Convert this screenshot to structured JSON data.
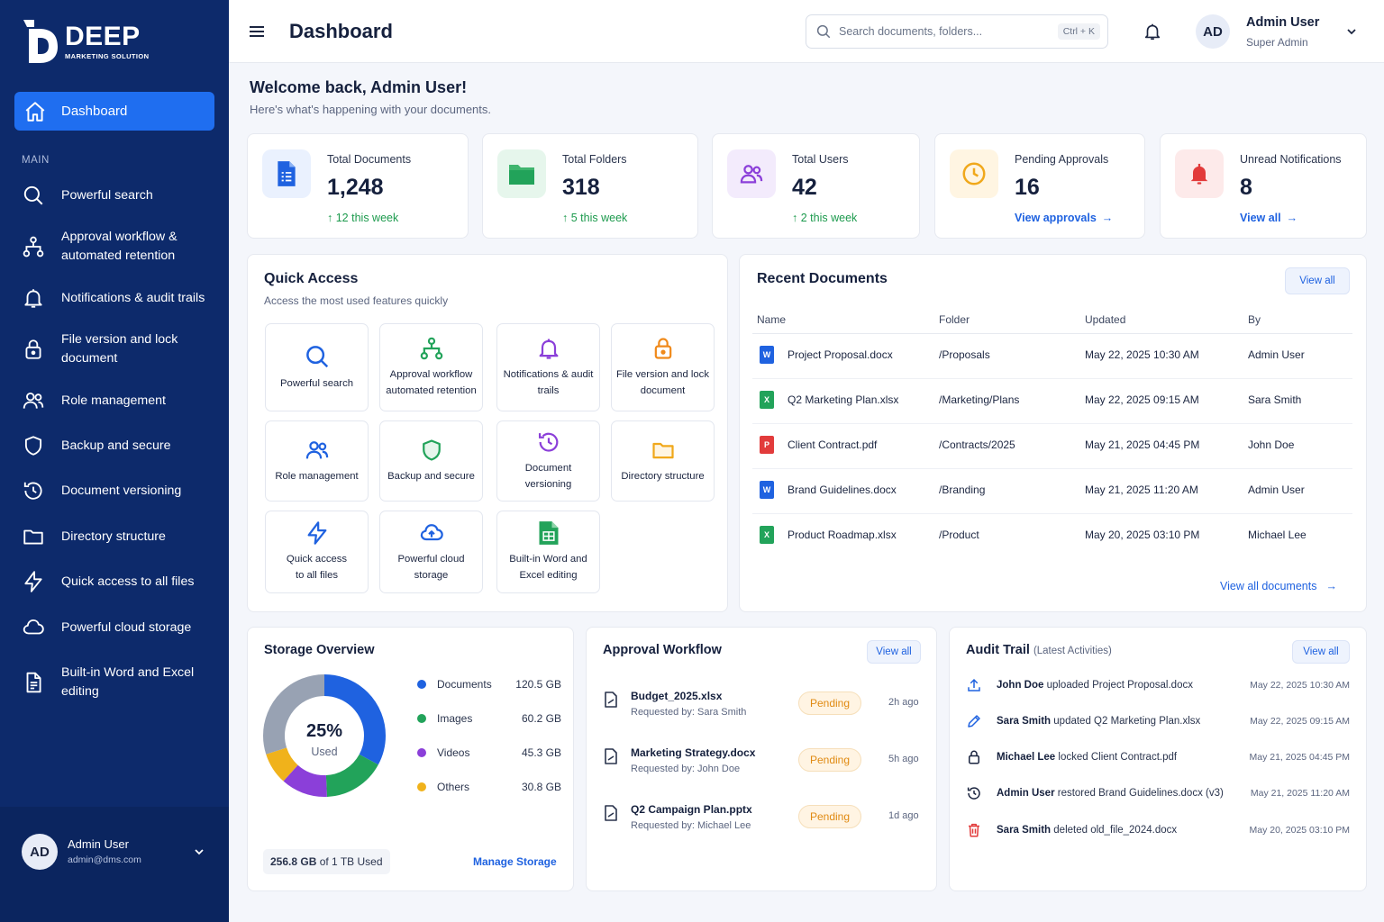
{
  "brand": {
    "name": "DEEP",
    "tagline": "MARKETING SOLUTION"
  },
  "sidebar": {
    "active": {
      "label": "Dashboard",
      "icon": "home-icon"
    },
    "section": "MAIN",
    "items": [
      {
        "label": "Powerful search",
        "icon": "search-icon"
      },
      {
        "label": "Approval workflow & automated retention",
        "icon": "workflow-icon"
      },
      {
        "label": "Notifications & audit trails",
        "icon": "bell-icon"
      },
      {
        "label": "File version and lock document",
        "icon": "lock-icon"
      },
      {
        "label": "Role management",
        "icon": "users-icon"
      },
      {
        "label": "Backup and secure",
        "icon": "shield-icon"
      },
      {
        "label": "Document versioning",
        "icon": "history-icon"
      },
      {
        "label": "Directory structure",
        "icon": "folder-icon"
      },
      {
        "label": "Quick access to all files",
        "icon": "bolt-icon"
      },
      {
        "label": "Powerful cloud storage",
        "icon": "cloud-icon"
      },
      {
        "label": "Built-in Word and Excel editing",
        "icon": "document-icon"
      }
    ],
    "user": {
      "initials": "AD",
      "name": "Admin User",
      "email": "admin@dms.com"
    }
  },
  "header": {
    "title": "Dashboard",
    "search_placeholder": "Search documents, folders...",
    "shortcut": "Ctrl + K",
    "user": {
      "initials": "AD",
      "name": "Admin User",
      "role": "Super Admin"
    }
  },
  "welcome": {
    "title": "Welcome back, Admin User!",
    "subtitle": "Here's what's happening with your documents."
  },
  "stats": [
    {
      "label": "Total Documents",
      "value": "1,248",
      "delta": "12 this week",
      "icon": "document-icon",
      "color": "#1f62e0",
      "bg": "#eaf1fe"
    },
    {
      "label": "Total Folders",
      "value": "318",
      "delta": "5 this week",
      "icon": "folder-icon",
      "color": "#22a35a",
      "bg": "#e6f6ec"
    },
    {
      "label": "Total Users",
      "value": "42",
      "delta": "2 this week",
      "icon": "users-icon",
      "color": "#8b3fd9",
      "bg": "#f3ebfc"
    },
    {
      "label": "Pending Approvals",
      "value": "16",
      "link": "View approvals",
      "icon": "clock-icon",
      "color": "#f0a81b",
      "bg": "#fff5e2"
    },
    {
      "label": "Unread Notifications",
      "value": "8",
      "link": "View all",
      "icon": "bell-icon",
      "color": "#e23b3b",
      "bg": "#fdeaea"
    }
  ],
  "quick_access": {
    "title": "Quick Access",
    "subtitle": "Access the most used features quickly",
    "tiles": [
      {
        "label": "Powerful search",
        "icon": "search-icon",
        "color": "#1f62e0"
      },
      {
        "label": "Approval workflow automated retention",
        "icon": "workflow-icon",
        "color": "#22a35a"
      },
      {
        "label": "Notifications & audit trails",
        "icon": "bell-icon",
        "color": "#8b3fd9"
      },
      {
        "label": "File version and lock document",
        "icon": "lock-icon",
        "color": "#f08a1b"
      },
      {
        "label": "Role management",
        "icon": "users-icon",
        "color": "#1f62e0"
      },
      {
        "label": "Backup and secure",
        "icon": "shield-icon",
        "color": "#22a35a"
      },
      {
        "label": "Document versioning",
        "icon": "history-icon",
        "color": "#8b3fd9"
      },
      {
        "label": "Directory structure",
        "icon": "folder-icon",
        "color": "#f0a81b"
      },
      {
        "label": "Quick access to all files",
        "icon": "bolt-icon",
        "color": "#1f62e0"
      },
      {
        "label": "Powerful cloud storage",
        "icon": "cloud-icon",
        "color": "#1f62e0"
      },
      {
        "label": "Built-in Word and Excel editing",
        "icon": "spreadsheet-icon",
        "color": "#22a35a"
      }
    ]
  },
  "recent": {
    "title": "Recent Documents",
    "view_all": "View all",
    "columns": [
      "Name",
      "Folder",
      "Updated",
      "By"
    ],
    "rows": [
      {
        "name": "Project Proposal.docx",
        "folder": "/Proposals",
        "updated": "May 22, 2025 10:30 AM",
        "by": "Admin User",
        "type": "W",
        "color": "#1f62e0"
      },
      {
        "name": "Q2 Marketing Plan.xlsx",
        "folder": "/Marketing/Plans",
        "updated": "May 22, 2025 09:15 AM",
        "by": "Sara Smith",
        "type": "X",
        "color": "#22a35a"
      },
      {
        "name": "Client Contract.pdf",
        "folder": "/Contracts/2025",
        "updated": "May 21, 2025 04:45 PM",
        "by": "John Doe",
        "type": "P",
        "color": "#e23b3b"
      },
      {
        "name": "Brand Guidelines.docx",
        "folder": "/Branding",
        "updated": "May 21, 2025 11:20 AM",
        "by": "Admin User",
        "type": "W",
        "color": "#1f62e0"
      },
      {
        "name": "Product Roadmap.xlsx",
        "folder": "/Product",
        "updated": "May 20, 2025 03:10 PM",
        "by": "Michael Lee",
        "type": "X",
        "color": "#22a35a"
      }
    ],
    "footer_link": "View all documents"
  },
  "storage": {
    "title": "Storage Overview",
    "percent_label": "25%",
    "used_label": "Used",
    "legend": [
      {
        "label": "Documents",
        "value": "120.5 GB",
        "color": "#1f62e0"
      },
      {
        "label": "Images",
        "value": "60.2 GB",
        "color": "#22a35a"
      },
      {
        "label": "Videos",
        "value": "45.3 GB",
        "color": "#8b3fd9"
      },
      {
        "label": "Others",
        "value": "30.8 GB",
        "color": "#f0b21b"
      }
    ],
    "remaining_color": "#98a2b3",
    "used_total_bold": "256.8 GB",
    "used_total_rest": " of 1 TB Used",
    "manage": "Manage Storage"
  },
  "approval": {
    "title": "Approval Workflow",
    "view_all": "View all",
    "items": [
      {
        "file": "Budget_2025.xlsx",
        "requested": "Requested by: Sara Smith",
        "status": "Pending",
        "ago": "2h ago"
      },
      {
        "file": "Marketing Strategy.docx",
        "requested": "Requested by: John Doe",
        "status": "Pending",
        "ago": "5h ago"
      },
      {
        "file": "Q2 Campaign Plan.pptx",
        "requested": "Requested by: Michael Lee",
        "status": "Pending",
        "ago": "1d ago"
      }
    ]
  },
  "audit": {
    "title": "Audit Trail",
    "title_note": "(Latest Activities)",
    "view_all": "View all",
    "items": [
      {
        "user": "John Doe",
        "action": " uploaded Project Proposal.docx",
        "time": "May 22, 2025 10:30 AM",
        "icon": "upload-icon",
        "color": "#1f62e0"
      },
      {
        "user": "Sara Smith",
        "action": " updated Q2 Marketing Plan.xlsx",
        "time": "May 22, 2025 09:15 AM",
        "icon": "pencil-icon",
        "color": "#1f62e0"
      },
      {
        "user": "Michael Lee",
        "action": " locked Client Contract.pdf",
        "time": "May 21, 2025 04:45 PM",
        "icon": "lock-icon",
        "color": "#1b2540"
      },
      {
        "user": "Admin User",
        "action": " restored Brand Guidelines.docx (v3)",
        "time": "May 21, 2025 11:20 AM",
        "icon": "history-icon",
        "color": "#1b2540"
      },
      {
        "user": "Sara Smith",
        "action": " deleted old_file_2024.docx",
        "time": "May 20, 2025 03:10 PM",
        "icon": "trash-icon",
        "color": "#e23b3b"
      }
    ]
  }
}
